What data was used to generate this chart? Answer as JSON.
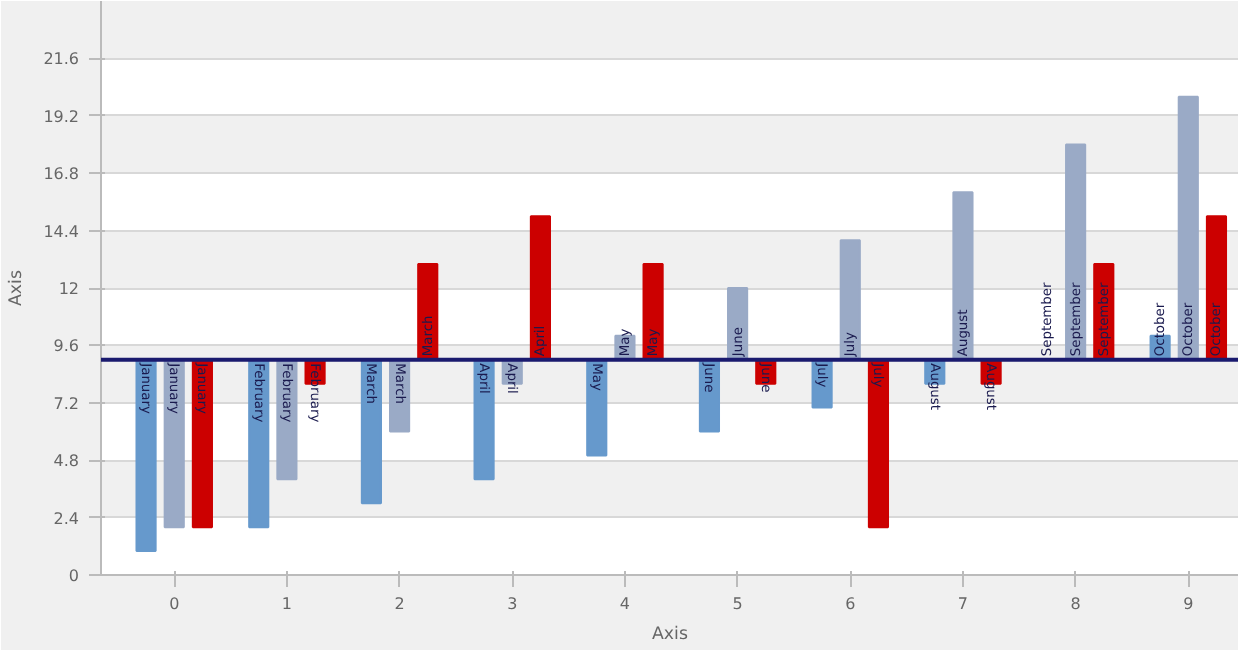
{
  "chart_data": {
    "type": "bar",
    "xlabel": "Axis",
    "ylabel": "Axis",
    "categories": [
      "0",
      "1",
      "2",
      "3",
      "4",
      "5",
      "6",
      "7",
      "8",
      "9"
    ],
    "ylim": [
      0,
      24
    ],
    "yticks": [
      0,
      2.4,
      4.8,
      7.2,
      9.6,
      12,
      14.4,
      16.8,
      19.2,
      21.6
    ],
    "grid": "y",
    "series": [
      {
        "color": "#6699cc",
        "base": [
          9,
          9,
          9,
          9,
          9,
          9,
          9,
          9,
          9,
          9
        ],
        "values": [
          -8,
          -7,
          -6,
          -5,
          -4,
          -3,
          -2,
          -1,
          0,
          1
        ],
        "value_labels": [
          "January",
          "February",
          "March",
          "April",
          "May",
          "June",
          "July",
          "August",
          "September",
          "October"
        ]
      },
      {
        "color": "#9aaac6",
        "base": [
          9,
          9,
          9,
          9,
          9,
          9,
          9,
          9,
          9,
          9
        ],
        "values": [
          -7,
          -5,
          -3,
          -1,
          1,
          3,
          5,
          7,
          9,
          11
        ],
        "value_labels": [
          "January",
          "February",
          "March",
          "April",
          "May",
          "June",
          "July",
          "August",
          "September",
          "October"
        ]
      },
      {
        "color": "#cc0000",
        "base": [
          9,
          9,
          9,
          9,
          9,
          9,
          9,
          9,
          9,
          9
        ],
        "values": [
          -7,
          -1,
          4,
          6,
          4,
          -1,
          -7,
          -1,
          4,
          6
        ],
        "value_labels": [
          "January",
          "February",
          "March",
          "April",
          "May",
          "June",
          "July",
          "August",
          "September",
          "October"
        ]
      }
    ],
    "ref_lines": [
      {
        "axis": "y",
        "value": 9,
        "color": "#1a1a6e"
      }
    ]
  }
}
